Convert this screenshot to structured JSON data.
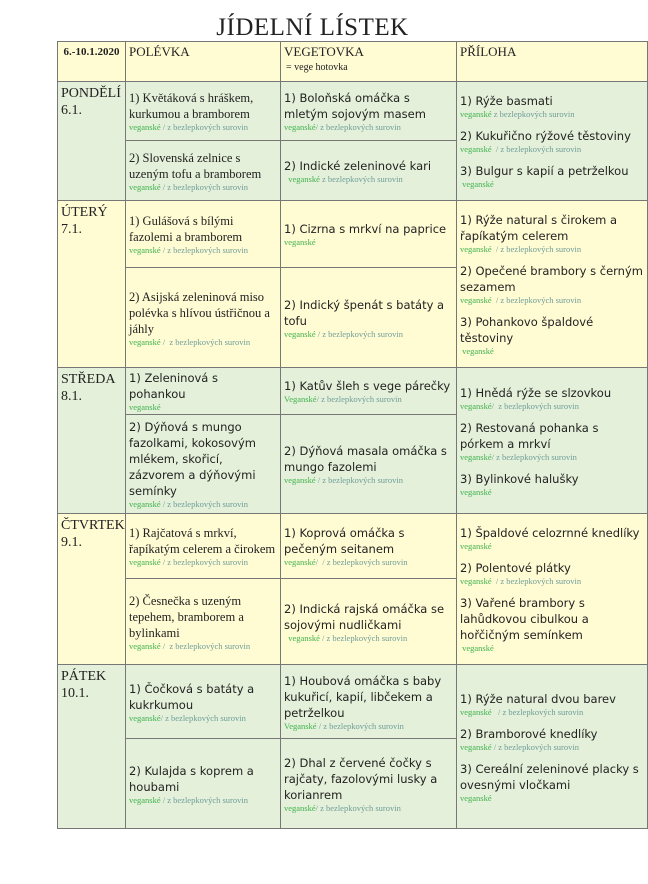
{
  "title": "JÍDELNÍ LÍSTEK",
  "colors": {
    "yellow": "#fffbd3",
    "green": "#e4f0d9",
    "vegan_text": "#3fb24e",
    "gluten_free_text": "#6e9e9a"
  },
  "header": {
    "date_range": "6.-10.1.2020",
    "soup": "POLÉVKA",
    "main": "VEGETOVKA",
    "main_note": "=   vege hotovka",
    "side": "PŘÍLOHA"
  },
  "days": [
    {
      "name": "PONDĚLÍ",
      "date": "6.1.",
      "soups": [
        {
          "name": "1) Květáková s hráškem, kurkumou a bramborem",
          "vegan": "veganské",
          "rest": " / z bezlepkových surovin"
        },
        {
          "name": "2) Slovenská zelnice s uzeným tofu a bramborem",
          "vegan": "veganské",
          "rest": " / z bezlepkových surovin"
        }
      ],
      "mains": [
        {
          "name": "1) Boloňská omáčka s mletým sojovým masem",
          "vegan": "veganské",
          "rest": "/ z bezlepkových surovin"
        },
        {
          "name": "2) Indické zeleninové kari",
          "vegan": "  veganské",
          "rest": " z bezlepkových surovin"
        }
      ],
      "sides": [
        {
          "name": "1) Rýže basmati",
          "vegan": "veganské",
          "rest": " z bezlepkových surovin"
        },
        {
          "name": "2) Kukuřično rýžové těstoviny",
          "vegan": "veganské",
          "rest": "  / z bezlepkových surovin"
        },
        {
          "name": "3) Bulgur s kapií a petrželkou",
          "vegan": " veganské",
          "rest": ""
        }
      ]
    },
    {
      "name": "ÚTERÝ",
      "date": "7.1.",
      "soups": [
        {
          "name": "1) Gulášová s bílými fazolemi a bramborem",
          "vegan": "veganské",
          "rest": " / z bezlepkových surovin"
        },
        {
          "name": "2) Asijská zeleninová miso polévka s hlívou ústřičnou a jáhly",
          "vegan": "veganské",
          "rest": " /  z bezlepkových surovin"
        }
      ],
      "mains": [
        {
          "name": "1) Cizrna s mrkví na paprice",
          "vegan": "veganské",
          "rest": ""
        },
        {
          "name": "2) Indický špenát s batáty a tofu",
          "vegan": "veganské",
          "rest": " / z bezlepkových surovin"
        }
      ],
      "sides": [
        {
          "name": "1) Rýže natural s čirokem a řapíkatým celerem",
          "vegan": "veganské",
          "rest": "  / z bezlepkových surovin"
        },
        {
          "name": "2) Opečené brambory s černým sezamem",
          "vegan": "veganské",
          "rest": "  / z bezlepkových surovin"
        },
        {
          "name": "3) Pohankovo špaldové těstoviny",
          "vegan": " veganské",
          "rest": ""
        }
      ]
    },
    {
      "name": "STŘEDA",
      "date": "8.1.",
      "soups": [
        {
          "name": "1) Zeleninová s pohankou",
          "vegan": "veganské",
          "rest": ""
        },
        {
          "name": "2) Dýňová s mungo fazolkami, kokosovým mlékem, skořicí, zázvorem a dýňovými semínky",
          "vegan": "veganské",
          "rest": " / z bezlepkových surovin"
        }
      ],
      "mains": [
        {
          "name": "1) Katův šleh s vege párečky",
          "vegan": "Veganské",
          "rest": "/ z bezlepkových surovin"
        },
        {
          "name": "2) Dýňová masala omáčka s mungo fazolemi",
          "vegan": "veganské",
          "rest": " / z bezlepkových surovin"
        }
      ],
      "sides": [
        {
          "name": "1) Hnědá rýže se slzovkou",
          "vegan": "veganské",
          "rest": "/  z bezlepkových surovin"
        },
        {
          "name": "2) Restovaná pohanka s pórkem a mrkví",
          "vegan": "veganské",
          "rest": "/ z bezlepkových surovin"
        },
        {
          "name": "3) Bylinkové halušky",
          "vegan": "veganské",
          "rest": ""
        }
      ]
    },
    {
      "name": "ČTVRTEK",
      "date": "9.1.",
      "soups": [
        {
          "name": "1) Rajčatová s mrkví, řapíkatým celerem a čirokem",
          "vegan": "veganské",
          "rest": " / z bezlepkových surovin"
        },
        {
          "name": "2) Česnečka s uzeným tepehem, bramborem a bylinkami",
          "vegan": "veganské",
          "rest": " /  z bezlepkových surovin"
        }
      ],
      "mains": [
        {
          "name": "1) Koprová omáčka s pečeným seitanem",
          "vegan": "veganské",
          "rest": "/  / z bezlepkových surovin"
        },
        {
          "name": "2) Indická rajská omáčka se sojovými nudličkami",
          "vegan": "  veganské",
          "rest": " / z bezlepkových surovin"
        }
      ],
      "sides": [
        {
          "name": "1) Špaldové celozrnné knedlíky",
          "vegan": "veganské",
          "rest": ""
        },
        {
          "name": "2) Polentové plátky",
          "vegan": "veganské",
          "rest": "  / z bezlepkových surovin"
        },
        {
          "name": "3) Vařené brambory s lahůdkovou cibulkou a hořčičným semínkem",
          "vegan": " veganské",
          "rest": ""
        }
      ]
    },
    {
      "name": "PÁTEK",
      "date": "10.1.",
      "soups": [
        {
          "name": "1) Čočková s batáty a kukrkumou",
          "vegan": "veganské",
          "rest": "/ z bezlepkových surovin"
        },
        {
          "name": "2) Kulajda s koprem a houbami",
          "vegan": "veganské",
          "rest": " / z bezlepkových surovin"
        }
      ],
      "mains": [
        {
          "name": "1) Houbová omáčka s baby kukuřicí, kapií, libčekem a petrželkou",
          "vegan": "Veganské",
          "rest": " / z bezlepkových surovin"
        },
        {
          "name": "2) Dhal z červené čočky s rajčaty, fazolovými lusky a korianrem",
          "vegan": "veganské",
          "rest": "/ z bezlepkových surovin"
        }
      ],
      "sides": [
        {
          "name": "1) Rýže natural dvou barev",
          "vegan": "veganské",
          "rest": "   / z bezlepkových surovin"
        },
        {
          "name": "2) Bramborové knedlíky",
          "vegan": "veganské",
          "rest": " / z bezlepkových surovin"
        },
        {
          "name": "3) Cereální zeleninové placky s ovesnými vločkami",
          "vegan": "veganské",
          "rest": ""
        }
      ]
    }
  ]
}
